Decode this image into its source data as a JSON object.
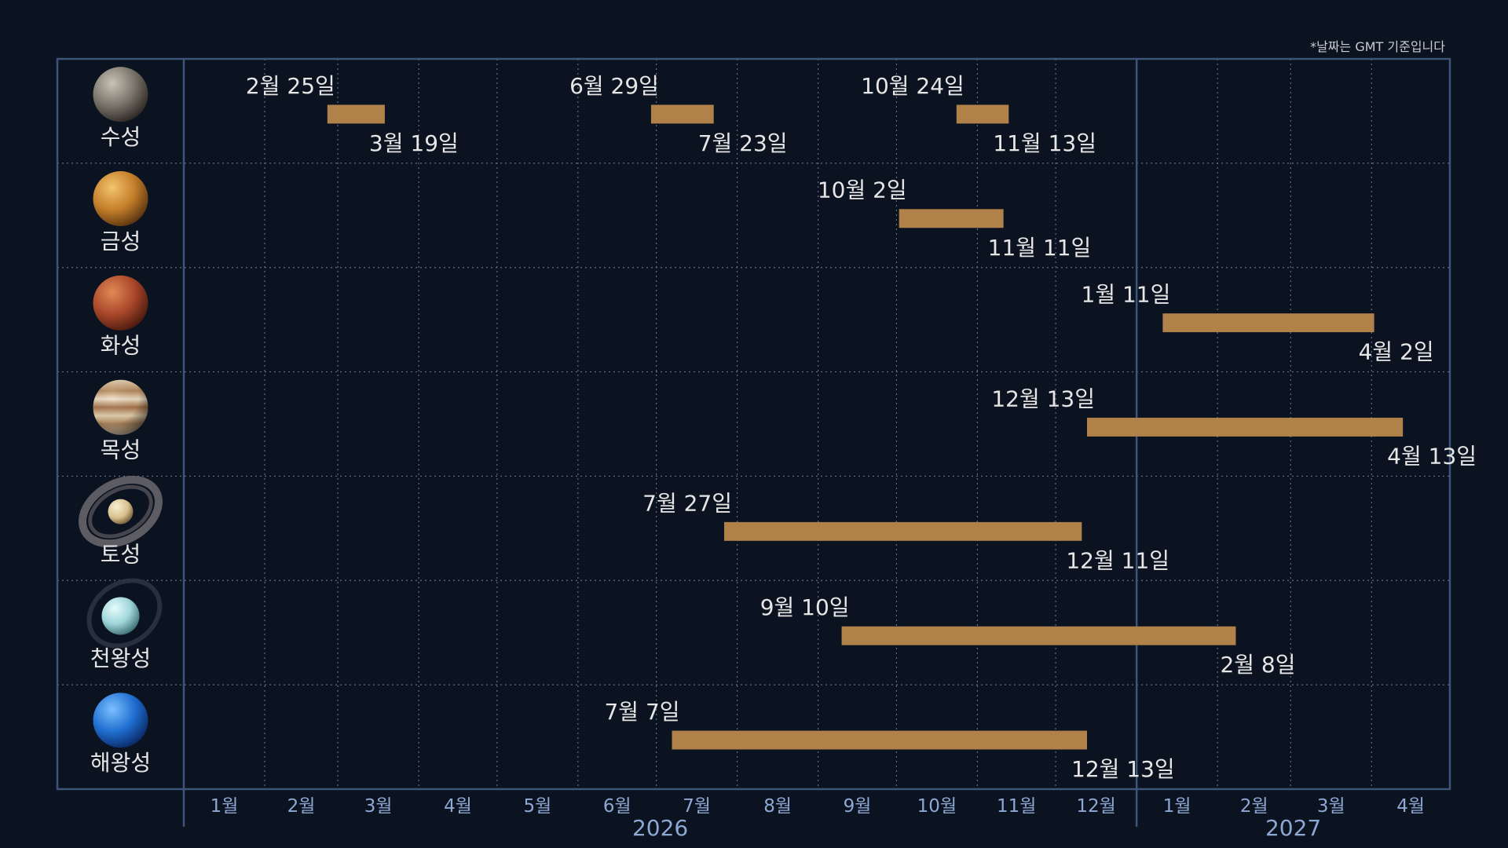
{
  "note": "*날짜는 GMT 기준입니다",
  "colors": {
    "background": "#0b1220",
    "frame": "#3d5578",
    "grid": "#5c6f8c",
    "bar": "#b0824a",
    "label": "#e6e6e6",
    "axis_label": "#8ea8d4"
  },
  "chart_data": {
    "type": "gantt",
    "title": "",
    "x_axis": {
      "start": "2026-01-01",
      "end": "2027-05-01",
      "month_labels": [
        "1월",
        "2월",
        "3월",
        "4월",
        "5월",
        "6월",
        "7월",
        "8월",
        "9월",
        "10월",
        "11월",
        "12월",
        "1월",
        "2월",
        "3월",
        "4월"
      ],
      "year_labels": [
        {
          "label": "2026",
          "year": 2026
        },
        {
          "label": "2027",
          "year": 2027
        }
      ]
    },
    "grid": true,
    "rows": [
      {
        "name": "수성",
        "icon": "mercury-icon",
        "intervals": [
          {
            "start": "2026-02-25",
            "end": "2026-03-19",
            "start_label": "2월 25일",
            "end_label": "3월 19일"
          },
          {
            "start": "2026-06-29",
            "end": "2026-07-23",
            "start_label": "6월 29일",
            "end_label": "7월 23일"
          },
          {
            "start": "2026-10-24",
            "end": "2026-11-13",
            "start_label": "10월 24일",
            "end_label": "11월 13일"
          }
        ]
      },
      {
        "name": "금성",
        "icon": "venus-icon",
        "intervals": [
          {
            "start": "2026-10-02",
            "end": "2026-11-11",
            "start_label": "10월 2일",
            "end_label": "11월 11일"
          }
        ]
      },
      {
        "name": "화성",
        "icon": "mars-icon",
        "intervals": [
          {
            "start": "2027-01-11",
            "end": "2027-04-02",
            "start_label": "1월 11일",
            "end_label": "4월 2일"
          }
        ]
      },
      {
        "name": "목성",
        "icon": "jupiter-icon",
        "intervals": [
          {
            "start": "2026-12-13",
            "end": "2027-04-13",
            "start_label": "12월 13일",
            "end_label": "4월 13일"
          }
        ]
      },
      {
        "name": "토성",
        "icon": "saturn-icon",
        "intervals": [
          {
            "start": "2026-07-27",
            "end": "2026-12-11",
            "start_label": "7월 27일",
            "end_label": "12월 11일"
          }
        ]
      },
      {
        "name": "천왕성",
        "icon": "uranus-icon",
        "intervals": [
          {
            "start": "2026-09-10",
            "end": "2027-02-08",
            "start_label": "9월 10일",
            "end_label": "2월 8일"
          }
        ]
      },
      {
        "name": "해왕성",
        "icon": "neptune-icon",
        "intervals": [
          {
            "start": "2026-07-07",
            "end": "2026-12-13",
            "start_label": "7월 7일",
            "end_label": "12월 13일"
          }
        ]
      }
    ]
  }
}
